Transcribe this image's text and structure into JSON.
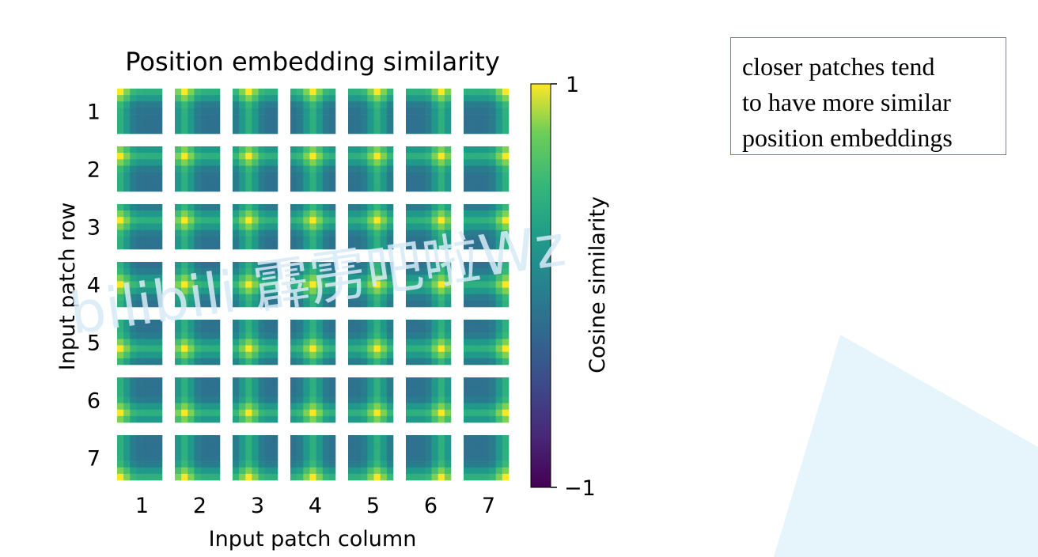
{
  "annotation": {
    "lines": [
      "closer patches tend",
      "to have more similar",
      "position embeddings"
    ]
  },
  "watermark": {
    "text": "bilibili 霹雳吧啦Wz"
  },
  "colors": {
    "callout_border": "#5b88c6",
    "watermark_color": "#d8ebf7",
    "decor_triangle": "#e6f4fb",
    "colormap": "viridis"
  },
  "chart_data": {
    "type": "heatmap",
    "title": "Position embedding similarity",
    "xlabel": "Input patch column",
    "ylabel": "Input patch row",
    "rows": [
      "1",
      "2",
      "3",
      "4",
      "5",
      "6",
      "7"
    ],
    "columns": [
      "1",
      "2",
      "3",
      "4",
      "5",
      "6",
      "7"
    ],
    "description": "Each tile (row r, column c) is a 7x7 heatmap of cosine similarity between the position embedding of patch (r,c) and every other patch.",
    "colorbar": {
      "label": "Cosine similarity",
      "range": [
        -1,
        1
      ],
      "ticks": [
        "1",
        "−1"
      ],
      "colormap": "viridis"
    },
    "grid": false
  }
}
